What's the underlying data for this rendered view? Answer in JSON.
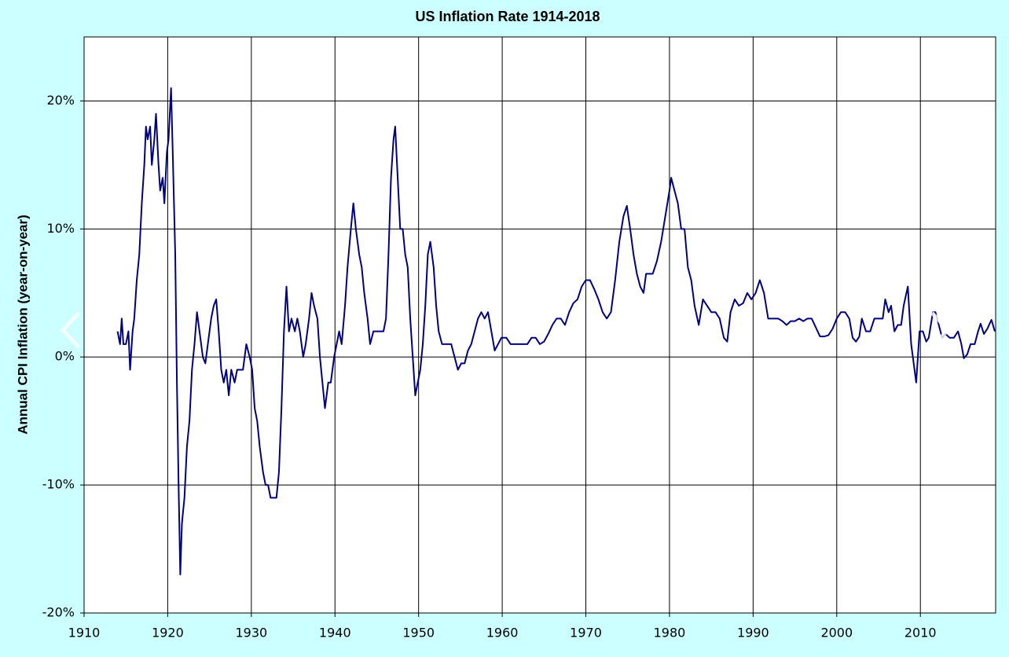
{
  "chart_data": {
    "type": "line",
    "title": "US Inflation Rate 1914-2018",
    "y_label": "Annual CPI Inflation (year-on-year)",
    "color": "#000080",
    "grid": true,
    "xlim": [
      1910,
      2019
    ],
    "xticks": [
      1910,
      1920,
      1930,
      1940,
      1950,
      1960,
      1970,
      1980,
      1990,
      2000,
      2010
    ],
    "ylim": [
      -20,
      25
    ],
    "yticks": [
      {
        "value": -20,
        "label": "-20%"
      },
      {
        "value": -10,
        "label": "-10%"
      },
      {
        "value": 0,
        "label": "0%"
      },
      {
        "value": 10,
        "label": "10%"
      },
      {
        "value": 20,
        "label": "20%"
      }
    ],
    "x": [
      1914.0,
      1914.3,
      1914.5,
      1914.7,
      1915.0,
      1915.3,
      1915.5,
      1915.8,
      1916.0,
      1916.3,
      1916.6,
      1916.9,
      1917.2,
      1917.4,
      1917.6,
      1917.9,
      1918.1,
      1918.4,
      1918.6,
      1918.9,
      1919.1,
      1919.4,
      1919.6,
      1919.9,
      1920.1,
      1920.4,
      1920.6,
      1920.9,
      1921.1,
      1921.3,
      1921.5,
      1921.7,
      1922.0,
      1922.3,
      1922.6,
      1922.9,
      1923.2,
      1923.5,
      1923.8,
      1924.2,
      1924.5,
      1924.8,
      1925.2,
      1925.5,
      1925.8,
      1926.1,
      1926.4,
      1926.7,
      1927.0,
      1927.3,
      1927.6,
      1928.0,
      1928.3,
      1928.7,
      1929.0,
      1929.4,
      1929.8,
      1930.1,
      1930.4,
      1930.7,
      1931.0,
      1931.4,
      1931.7,
      1932.0,
      1932.3,
      1932.7,
      1933.0,
      1933.3,
      1933.6,
      1933.9,
      1934.2,
      1934.5,
      1934.8,
      1935.2,
      1935.5,
      1935.8,
      1936.2,
      1936.5,
      1936.9,
      1937.2,
      1937.5,
      1937.9,
      1938.2,
      1938.5,
      1938.8,
      1939.2,
      1939.5,
      1939.9,
      1940.2,
      1940.5,
      1940.8,
      1941.2,
      1941.5,
      1941.9,
      1942.2,
      1942.5,
      1942.9,
      1943.2,
      1943.5,
      1943.9,
      1944.2,
      1944.6,
      1945.0,
      1945.4,
      1945.8,
      1946.1,
      1946.4,
      1946.7,
      1947.0,
      1947.2,
      1947.5,
      1947.8,
      1948.1,
      1948.4,
      1948.7,
      1949.0,
      1949.3,
      1949.6,
      1949.9,
      1950.2,
      1950.5,
      1950.8,
      1951.1,
      1951.4,
      1951.8,
      1952.1,
      1952.4,
      1952.8,
      1953.1,
      1953.5,
      1953.9,
      1954.3,
      1954.7,
      1955.1,
      1955.5,
      1955.9,
      1956.3,
      1956.7,
      1957.1,
      1957.5,
      1957.9,
      1958.3,
      1958.7,
      1959.1,
      1959.5,
      1959.9,
      1960.5,
      1961.0,
      1961.5,
      1962.0,
      1962.5,
      1963.0,
      1963.5,
      1964.0,
      1964.5,
      1965.0,
      1965.5,
      1966.0,
      1966.5,
      1967.0,
      1967.5,
      1968.0,
      1968.5,
      1969.0,
      1969.5,
      1970.0,
      1970.5,
      1971.0,
      1971.5,
      1972.0,
      1972.5,
      1973.0,
      1973.5,
      1974.0,
      1974.5,
      1974.9,
      1975.3,
      1975.7,
      1976.1,
      1976.5,
      1976.9,
      1977.2,
      1977.6,
      1978.0,
      1978.5,
      1979.0,
      1979.5,
      1980.0,
      1980.2,
      1980.6,
      1981.0,
      1981.4,
      1981.8,
      1982.2,
      1982.6,
      1983.0,
      1983.5,
      1984.0,
      1984.5,
      1985.0,
      1985.5,
      1986.0,
      1986.5,
      1986.9,
      1987.3,
      1987.8,
      1988.3,
      1988.8,
      1989.3,
      1989.8,
      1990.3,
      1990.8,
      1991.3,
      1991.8,
      1992.5,
      1993.0,
      1993.5,
      1994.0,
      1994.5,
      1995.0,
      1995.5,
      1996.0,
      1996.5,
      1997.0,
      1997.5,
      1998.0,
      1998.5,
      1999.0,
      1999.5,
      2000.0,
      2000.5,
      2001.0,
      2001.5,
      2001.9,
      2002.3,
      2002.7,
      2003.0,
      2003.5,
      2004.0,
      2004.5,
      2005.0,
      2005.5,
      2005.8,
      2006.2,
      2006.5,
      2006.9,
      2007.3,
      2007.7,
      2008.0,
      2008.5,
      2008.9,
      2009.2,
      2009.5,
      2009.9,
      2010.3,
      2010.7,
      2011.0,
      2011.5,
      2011.8,
      2012.2,
      2012.6,
      2013.0,
      2013.5,
      2014.0,
      2014.5,
      2014.9,
      2015.2,
      2015.6,
      2016.0,
      2016.5,
      2016.9,
      2017.2,
      2017.6,
      2018.0,
      2018.5,
      2018.9
    ],
    "values": [
      2,
      1,
      3,
      1,
      1,
      2,
      -1,
      2,
      3,
      6,
      8,
      12,
      15,
      18,
      17,
      18,
      15,
      17,
      19,
      15,
      13,
      14,
      12,
      16,
      17,
      21,
      16,
      8,
      -2,
      -10,
      -17,
      -13,
      -11,
      -7,
      -5,
      -1,
      1,
      3.5,
      2,
      0,
      -0.5,
      1,
      3,
      4,
      4.5,
      2,
      -1,
      -2,
      -1,
      -3,
      -1,
      -2,
      -1,
      -1,
      -1,
      1,
      0,
      -1,
      -4,
      -5,
      -7,
      -9,
      -10,
      -10,
      -11,
      -11,
      -11,
      -9,
      -4,
      2,
      5.5,
      2,
      3,
      2,
      3,
      2,
      0,
      1,
      3,
      5,
      4,
      3,
      0,
      -2,
      -4,
      -2,
      -2,
      0,
      1,
      2,
      1,
      4,
      7,
      10,
      12,
      10,
      8,
      7,
      5,
      3,
      1,
      2,
      2,
      2,
      2,
      3,
      8,
      14,
      17,
      18,
      14,
      10,
      10,
      8,
      7,
      3,
      0,
      -3,
      -2,
      -1,
      1,
      4,
      8,
      9,
      7,
      4,
      2,
      1,
      1,
      1,
      1,
      0,
      -1,
      -0.5,
      -0.5,
      0.5,
      1,
      2,
      3,
      3.5,
      3,
      3.5,
      2,
      0.5,
      1,
      1.5,
      1.5,
      1,
      1,
      1,
      1,
      1,
      1.5,
      1.5,
      1,
      1.2,
      1.8,
      2.5,
      3,
      3,
      2.5,
      3.5,
      4.2,
      4.5,
      5.5,
      6,
      6,
      5.3,
      4.5,
      3.5,
      3,
      3.5,
      6,
      9,
      11,
      11.8,
      10,
      8,
      6.5,
      5.5,
      5,
      6.5,
      6.5,
      6.5,
      7.5,
      9,
      11,
      13,
      14,
      13,
      12,
      10,
      10,
      7,
      6,
      4,
      2.5,
      4.5,
      4,
      3.5,
      3.5,
      3,
      1.5,
      1.2,
      3.5,
      4.5,
      4,
      4.2,
      5,
      4.5,
      5,
      6,
      5,
      3,
      3,
      3,
      2.8,
      2.5,
      2.8,
      2.8,
      3,
      2.8,
      3,
      3,
      2.3,
      1.6,
      1.6,
      1.7,
      2.2,
      3,
      3.5,
      3.5,
      3,
      1.5,
      1.2,
      1.6,
      3,
      2,
      2,
      3,
      3,
      3,
      4.5,
      3.5,
      4,
      2,
      2.5,
      2.5,
      4,
      5.5,
      1,
      -0.5,
      -2,
      2,
      2,
      1.2,
      1.5,
      3.5,
      3.5,
      2.5,
      1.5,
      1.8,
      1.5,
      1.5,
      2,
      1,
      -0.1,
      0.2,
      1,
      1,
      2,
      2.6,
      1.8,
      2.2,
      2.9,
      2
    ]
  }
}
